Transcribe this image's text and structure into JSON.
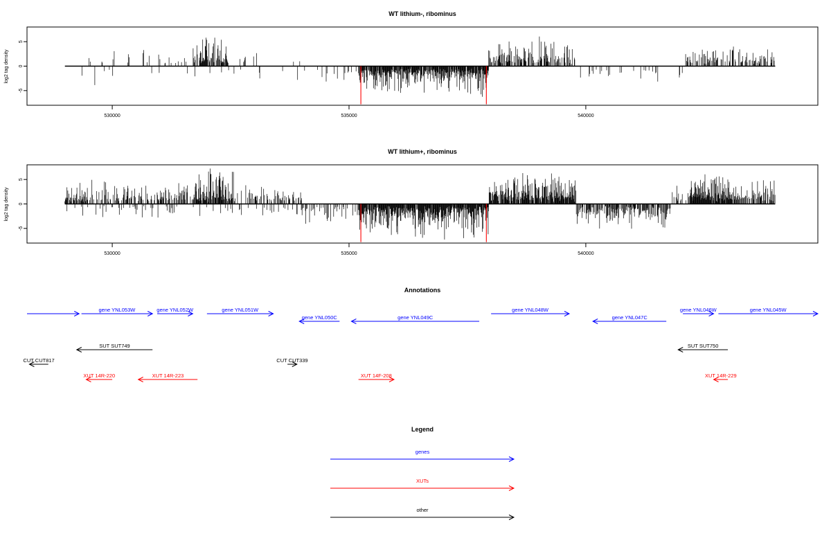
{
  "chart_data": [
    {
      "type": "bar",
      "title": "WT lithium-, ribominus",
      "ylabel": "log2 tag density",
      "xlim": [
        528200,
        544900
      ],
      "ylim": [
        -8,
        8
      ],
      "x_ticks": [
        530000,
        535000,
        540000
      ],
      "x_tick_labels": [
        "530000",
        "535000",
        "540000"
      ],
      "y_ticks": [
        -5,
        0,
        5
      ],
      "y_tick_labels": [
        "-5",
        "0",
        "5"
      ],
      "x_range": [
        529000,
        544000
      ],
      "baseline": 0,
      "segments": [
        {
          "x_start": 529000,
          "x_end": 529900,
          "dir": 1,
          "density": 0.06,
          "max": 3.2
        },
        {
          "x_start": 529900,
          "x_end": 531700,
          "dir": 1,
          "density": 0.09,
          "max": 3.5
        },
        {
          "x_start": 531700,
          "x_end": 532450,
          "dir": 1,
          "density": 0.7,
          "max": 6.5
        },
        {
          "x_start": 532450,
          "x_end": 534000,
          "dir": 1,
          "density": 0.05,
          "max": 3.0
        },
        {
          "x_start": 529000,
          "x_end": 534000,
          "dir": -1,
          "density": 0.025,
          "max": 3.0
        },
        {
          "x_start": 534000,
          "x_end": 535200,
          "dir": -1,
          "density": 0.08,
          "max": 3.5
        },
        {
          "x_start": 535200,
          "x_end": 537950,
          "dir": -1,
          "density": 0.85,
          "max": 6.0
        },
        {
          "x_start": 537950,
          "x_end": 539800,
          "dir": 1,
          "density": 0.55,
          "max": 5.5
        },
        {
          "x_start": 539800,
          "x_end": 542100,
          "dir": -1,
          "density": 0.1,
          "max": 3.0
        },
        {
          "x_start": 542100,
          "x_end": 544000,
          "dir": 1,
          "density": 0.4,
          "max": 4.2
        }
      ],
      "red_marks": [
        {
          "x": 535250,
          "value": -7.8
        },
        {
          "x": 537900,
          "value": -7.8
        }
      ]
    },
    {
      "type": "bar",
      "title": "WT lithium+, ribominus",
      "ylabel": "log2 tag density",
      "xlim": [
        528200,
        544900
      ],
      "ylim": [
        -8,
        8
      ],
      "x_ticks": [
        530000,
        535000,
        540000
      ],
      "x_tick_labels": [
        "530000",
        "535000",
        "540000"
      ],
      "y_ticks": [
        -5,
        0,
        5
      ],
      "y_tick_labels": [
        "-5",
        "0",
        "5"
      ],
      "x_range": [
        529000,
        544000
      ],
      "baseline": 0,
      "segments": [
        {
          "x_start": 529000,
          "x_end": 531700,
          "dir": 1,
          "density": 0.5,
          "max": 4.5
        },
        {
          "x_start": 531700,
          "x_end": 532600,
          "dir": 1,
          "density": 0.85,
          "max": 7.5
        },
        {
          "x_start": 532600,
          "x_end": 534000,
          "dir": 1,
          "density": 0.35,
          "max": 4.0
        },
        {
          "x_start": 529000,
          "x_end": 534000,
          "dir": -1,
          "density": 0.12,
          "max": 2.5
        },
        {
          "x_start": 534000,
          "x_end": 535200,
          "dir": -1,
          "density": 0.25,
          "max": 4.0
        },
        {
          "x_start": 535200,
          "x_end": 537950,
          "dir": -1,
          "density": 0.95,
          "max": 7.0
        },
        {
          "x_start": 537950,
          "x_end": 539800,
          "dir": 1,
          "density": 0.85,
          "max": 6.5
        },
        {
          "x_start": 539800,
          "x_end": 541800,
          "dir": -1,
          "density": 0.6,
          "max": 5.0
        },
        {
          "x_start": 541800,
          "x_end": 542300,
          "dir": 1,
          "density": 0.3,
          "max": 3.0
        },
        {
          "x_start": 542200,
          "x_end": 543100,
          "dir": 1,
          "density": 0.95,
          "max": 7.2
        },
        {
          "x_start": 543100,
          "x_end": 544000,
          "dir": 1,
          "density": 0.6,
          "max": 5.0
        }
      ],
      "red_marks": [
        {
          "x": 535250,
          "value": -7.8
        },
        {
          "x": 537900,
          "value": -7.8
        }
      ]
    }
  ],
  "annotations": {
    "title": "Annotations",
    "items": [
      {
        "label": "",
        "kind": "gene",
        "x_start": 528200,
        "x_end": 529300,
        "dir": 1,
        "row": 0
      },
      {
        "label": "gene YNL053W",
        "kind": "gene",
        "x_start": 529350,
        "x_end": 530850,
        "dir": 1,
        "row": 0
      },
      {
        "label": "gene YNL052W",
        "kind": "gene",
        "x_start": 530950,
        "x_end": 531700,
        "dir": 1,
        "row": 0
      },
      {
        "label": "gene YNL051W",
        "kind": "gene",
        "x_start": 532000,
        "x_end": 533400,
        "dir": 1,
        "row": 0
      },
      {
        "label": "gene YNL050C",
        "kind": "gene",
        "x_start": 533950,
        "x_end": 534800,
        "dir": -1,
        "row": 1
      },
      {
        "label": "gene YNL049C",
        "kind": "gene",
        "x_start": 535050,
        "x_end": 537750,
        "dir": -1,
        "row": 1
      },
      {
        "label": "gene YNL048W",
        "kind": "gene",
        "x_start": 538000,
        "x_end": 539650,
        "dir": 1,
        "row": 0
      },
      {
        "label": "gene YNL047C",
        "kind": "gene",
        "x_start": 540150,
        "x_end": 541700,
        "dir": -1,
        "row": 1
      },
      {
        "label": "gene YNL046W",
        "kind": "gene",
        "x_start": 542050,
        "x_end": 542700,
        "dir": 1,
        "row": 0
      },
      {
        "label": "gene YNL045W",
        "kind": "gene",
        "x_start": 542800,
        "x_end": 544900,
        "dir": 1,
        "row": 0
      },
      {
        "label": "SUT SUT749",
        "kind": "other",
        "x_start": 529250,
        "x_end": 530850,
        "dir": -1,
        "row": 2
      },
      {
        "label": "CUT CUT817",
        "kind": "other",
        "x_start": 528250,
        "x_end": 528650,
        "dir": -1,
        "row": 3
      },
      {
        "label": "CUT CUT339",
        "kind": "other",
        "x_start": 533700,
        "x_end": 533900,
        "dir": 1,
        "row": 3
      },
      {
        "label": "SUT SUT750",
        "kind": "other",
        "x_start": 541950,
        "x_end": 543000,
        "dir": -1,
        "row": 2
      },
      {
        "label": "XUT 14R-220",
        "kind": "xut",
        "x_start": 529450,
        "x_end": 530000,
        "dir": -1,
        "row": 4
      },
      {
        "label": "XUT 14R-223",
        "kind": "xut",
        "x_start": 530550,
        "x_end": 531800,
        "dir": -1,
        "row": 4
      },
      {
        "label": "XUT 14F-208",
        "kind": "xut",
        "x_start": 535200,
        "x_end": 535950,
        "dir": 1,
        "row": 4
      },
      {
        "label": "XUT 14R-229",
        "kind": "xut",
        "x_start": 542700,
        "x_end": 543000,
        "dir": -1,
        "row": 4
      }
    ]
  },
  "legend": {
    "title": "Legend",
    "items": [
      {
        "label": "genes",
        "color": "#0000ff"
      },
      {
        "label": "XUTs",
        "color": "#ff0000"
      },
      {
        "label": "other",
        "color": "#000000"
      }
    ]
  },
  "colors": {
    "gene": "#0000ff",
    "xut": "#ff0000",
    "other": "#000000"
  }
}
